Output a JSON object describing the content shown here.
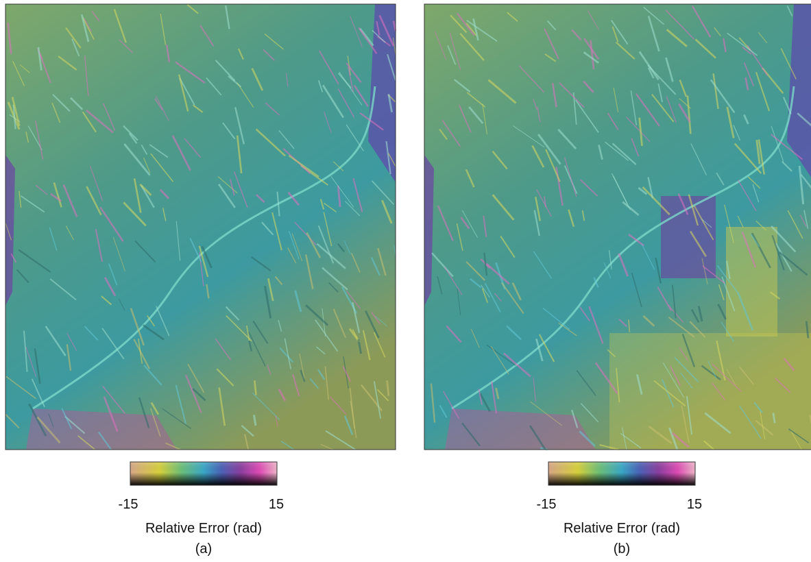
{
  "panels": [
    {
      "colorbar": {
        "min": -15,
        "max": 15,
        "label": "Relative Error (rad)"
      },
      "caption": "(a)"
    },
    {
      "colorbar": {
        "min": -15,
        "max": 15,
        "label": "Relative Error (rad)"
      },
      "caption": "(b)"
    }
  ]
}
